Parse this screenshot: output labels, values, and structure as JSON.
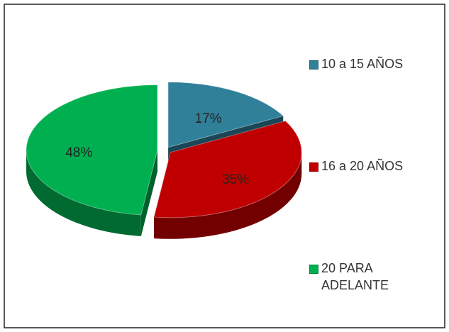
{
  "chart_data": {
    "type": "pie",
    "categories": [
      "10 a 15 AÑOS",
      "16 a 20 AÑOS",
      "20 PARA ADELANTE"
    ],
    "values": [
      17,
      35,
      48
    ],
    "value_labels": [
      "17%",
      "35%",
      "48%"
    ],
    "colors": [
      "#31809a",
      "#c00000",
      "#00b050"
    ],
    "legend": "right"
  }
}
